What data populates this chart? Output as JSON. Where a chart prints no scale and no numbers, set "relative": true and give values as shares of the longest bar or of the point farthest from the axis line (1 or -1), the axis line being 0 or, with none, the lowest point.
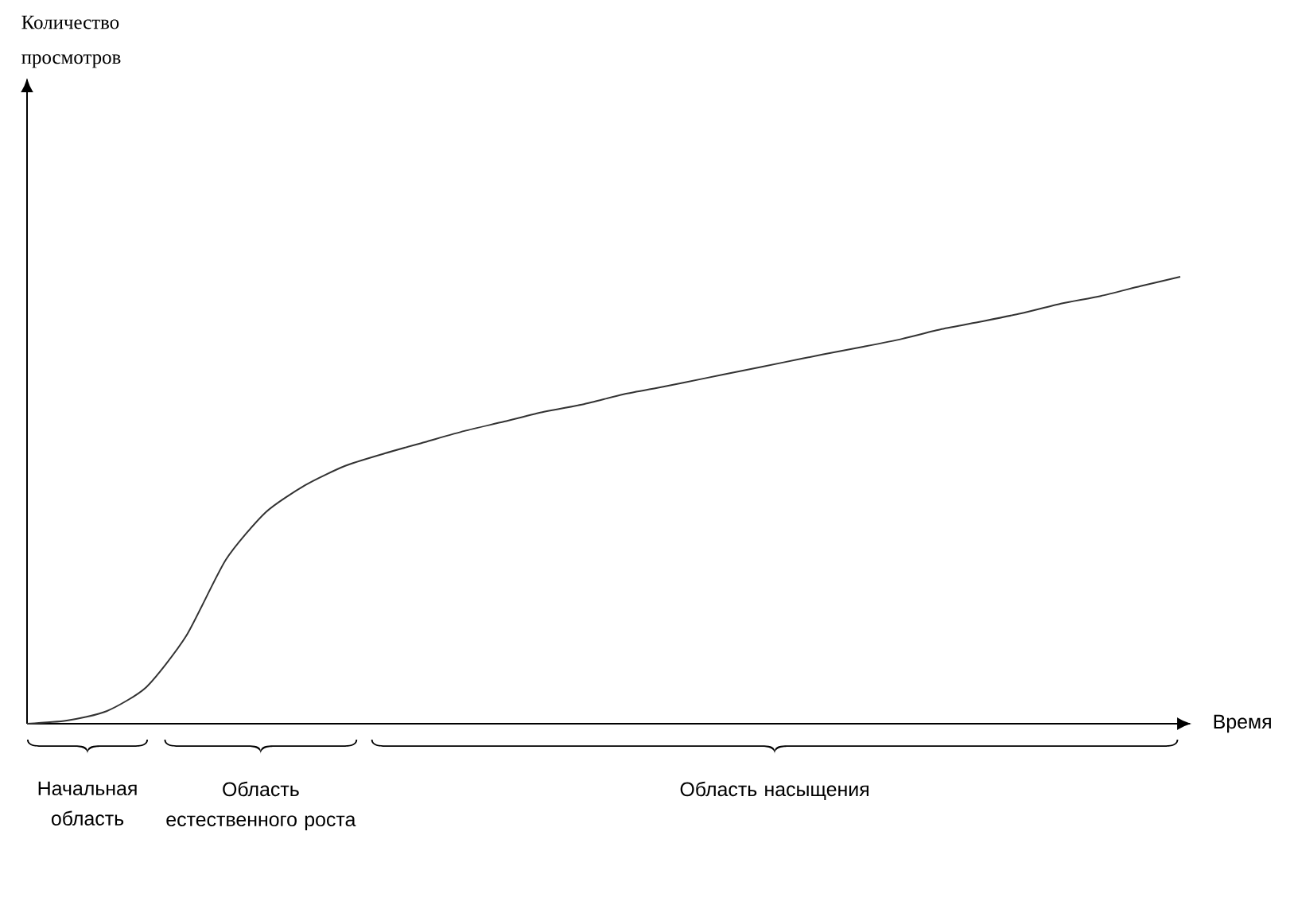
{
  "chart_data": {
    "type": "line",
    "relative": true,
    "xlabel": "Время",
    "color": "#333333",
    "categories": [
      null,
      null,
      null,
      null,
      null,
      null,
      null,
      null,
      null,
      null,
      null,
      null,
      null,
      null,
      null,
      null,
      null,
      null,
      null,
      null,
      null,
      null,
      null,
      null,
      null,
      null,
      null,
      null,
      null,
      null
    ],
    "values": [
      0,
      0.007,
      0.028,
      0.082,
      0.196,
      0.367,
      0.473,
      0.534,
      0.577,
      0.605,
      0.63,
      0.655,
      0.676,
      0.698,
      0.715,
      0.737,
      0.754,
      0.772,
      0.79,
      0.808,
      0.826,
      0.843,
      0.861,
      0.883,
      0.9,
      0.918,
      0.94,
      0.957,
      0.979,
      1
    ],
    "annotations": [
      "Количество просмотров",
      "Начальная область",
      "Область естественного роста",
      "Область насыщения"
    ]
  }
}
